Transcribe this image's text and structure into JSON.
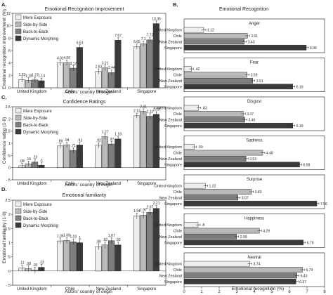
{
  "figure": {
    "left_panels": [
      {
        "id": "A",
        "panel_letter": "A.",
        "title": "Emotional Recognition Improvement",
        "ylabel": "Emotional recognition improvement (%)",
        "xlabel": "Actors' country of origin"
      },
      {
        "id": "C",
        "panel_letter": "C.",
        "title": "Confidence Ratings",
        "ylabel": "Confidence rating (1-9)",
        "xlabel": "Actors' country of origin"
      },
      {
        "id": "D",
        "panel_letter": "D.",
        "title": "Emotional familiarity",
        "ylabel": "Emotional familiarity (1-9)",
        "xlabel": "Actors' country of origin"
      }
    ],
    "right_panel": {
      "id": "B",
      "panel_letter": "B.",
      "title": "Emotional Recognition",
      "xlabel": "Emotional recognition (%)"
    },
    "colors": [
      "#eeeeee",
      "#b9b9b9",
      "#7e7e7e",
      "#3a3a3a"
    ]
  },
  "chart_data": [
    {
      "type": "bar",
      "title": "Emotional Recognition Improvement",
      "xlabel": "Actors' country of origin",
      "ylabel": "Emotional recognition improvement (%)",
      "categories": [
        "United Kingdom",
        "Chile",
        "New Zealand",
        "Singapore"
      ],
      "series": [
        {
          "name": "Mere Exposure",
          "values": [
            1.33,
            4.01,
            2.63,
            6.65
          ]
        },
        {
          "name": "Side-by-Side",
          "values": [
            1.19,
            4.06,
            3.21,
            7.1
          ]
        },
        {
          "name": "Back-to-Back",
          "values": [
            1.27,
            3.17,
            2.44,
            7.72
          ]
        },
        {
          "name": "Dynamic Morphing",
          "values": [
            1.14,
            6.51,
            7.67,
            10.35
          ]
        }
      ],
      "ylim": [
        0,
        12
      ],
      "yticks": [
        0,
        2,
        4,
        6,
        8,
        10,
        12
      ],
      "legend": "top-left",
      "grid": false
    },
    {
      "type": "bar",
      "title": "Confidence Ratings",
      "xlabel": "Actors' country of origin",
      "ylabel": "Confidence rating (1-9)",
      "categories": [
        "United Kingdom",
        "Chile",
        "New Zealand",
        "Singapore"
      ],
      "series": [
        {
          "name": "Mere Exposure",
          "values": [
            0.08,
            0.89,
            0.92,
            2.13
          ]
        },
        {
          "name": "Side-by-Side",
          "values": [
            0.16,
            0.94,
            1.27,
            2.31
          ]
        },
        {
          "name": "Back-to-Back",
          "values": [
            0.23,
            0.71,
            0.97,
            2.11
          ]
        },
        {
          "name": "Dynamic Morphing",
          "values": [
            0.1,
            0.93,
            1.18,
            2.19
          ]
        }
      ],
      "value_labels": [
        [
          ".08",
          ".89",
          ".92",
          "2.13"
        ],
        [
          ".16",
          ".94",
          "1.27",
          "2.31"
        ],
        [
          ".23",
          ".71",
          ".97",
          "2.11"
        ],
        [
          ".1",
          ".93",
          "1.18",
          "2.19"
        ]
      ],
      "ylim": [
        -0.5,
        2.5
      ],
      "yticks": [
        -0.5,
        0,
        0.5,
        1,
        1.5,
        2,
        2.5
      ],
      "ytick_labels": [
        "-.5",
        "0",
        ".5",
        "1",
        "1.5",
        "2",
        "2.5"
      ],
      "legend": "top-left",
      "grid": false
    },
    {
      "type": "bar",
      "title": "Emotional familiarity",
      "xlabel": "Actors' country of origin",
      "ylabel": "Emotional familiarity (1-9)",
      "categories": [
        "United Kingdom",
        "Chile",
        "New Zealand",
        "Singapore"
      ],
      "series": [
        {
          "name": "Mere Exposure",
          "values": [
            0.11,
            1.06,
            0.86,
            1.94
          ]
        },
        {
          "name": "Side-by-Side",
          "values": [
            0.08,
            1.08,
            0.92,
            1.97
          ]
        },
        {
          "name": "Back-to-Back",
          "values": [
            0.03,
            1.03,
            1.07,
            2.07
          ]
        },
        {
          "name": "Dynamic Morphing",
          "values": [
            0.13,
            1.0,
            0.92,
            2.21
          ]
        }
      ],
      "value_labels": [
        [
          ".11",
          "1.06",
          ".86",
          "1.94"
        ],
        [
          ".08",
          "1.08",
          ".92",
          "1.97"
        ],
        [
          ".03",
          "1.03",
          "1.07",
          "2.07"
        ],
        [
          ".13",
          "1",
          ".92",
          "2.21"
        ]
      ],
      "ylim": [
        -0.5,
        2.5
      ],
      "yticks": [
        -0.5,
        0,
        0.5,
        1,
        1.5,
        2,
        2.5
      ],
      "ytick_labels": [
        "-.5",
        "0",
        ".5",
        "1",
        "1.5",
        "2",
        "2.5"
      ],
      "legend": "top-left",
      "grid": false
    },
    {
      "type": "bar",
      "orientation": "horizontal",
      "title": "Emotional Recognition",
      "xlabel": "Emotional recognition (%)",
      "xlim": [
        0,
        8
      ],
      "xticks": [
        0,
        1,
        2,
        3,
        4,
        5,
        6,
        7,
        8
      ],
      "countries": [
        "United Kingdom",
        "Chile",
        "New Zealand",
        "Singapore"
      ],
      "groups": [
        {
          "emotion": "Anger",
          "values": [
            1.12,
            3.61,
            3.43,
            6.96
          ],
          "labels": [
            "1.12",
            "3.61",
            "3.43",
            "6.96"
          ]
        },
        {
          "emotion": "Fear",
          "values": [
            0.42,
            3.59,
            3.91,
            6.19
          ],
          "labels": [
            ".42",
            "3.59",
            "3.91",
            "6.19"
          ]
        },
        {
          "emotion": "Disgust",
          "values": [
            0.83,
            3.37,
            3.46,
            6.19
          ],
          "labels": [
            ".83",
            "3.37",
            "3.46",
            "6.19"
          ]
        },
        {
          "emotion": "Sadness",
          "values": [
            0.59,
            4.48,
            3.53,
            6.58
          ],
          "labels": [
            ".59",
            "4.48",
            "3.53",
            "6.58"
          ]
        },
        {
          "emotion": "Surprise",
          "values": [
            1.22,
            3.83,
            3.07,
            7.56
          ],
          "labels": [
            "1.22",
            "3.83",
            "3.07",
            "7.56"
          ]
        },
        {
          "emotion": "Happiness",
          "values": [
            0.8,
            4.29,
            2.99,
            6.79
          ],
          "labels": [
            ".8",
            "4.29",
            "2.99",
            "6.79"
          ]
        },
        {
          "emotion": "Neutral",
          "values": [
            3.74,
            6.74,
            6.43,
            6.37
          ],
          "labels": [
            "3.74",
            "6.74",
            "6.43",
            "6.37"
          ]
        }
      ],
      "grid": false
    }
  ]
}
